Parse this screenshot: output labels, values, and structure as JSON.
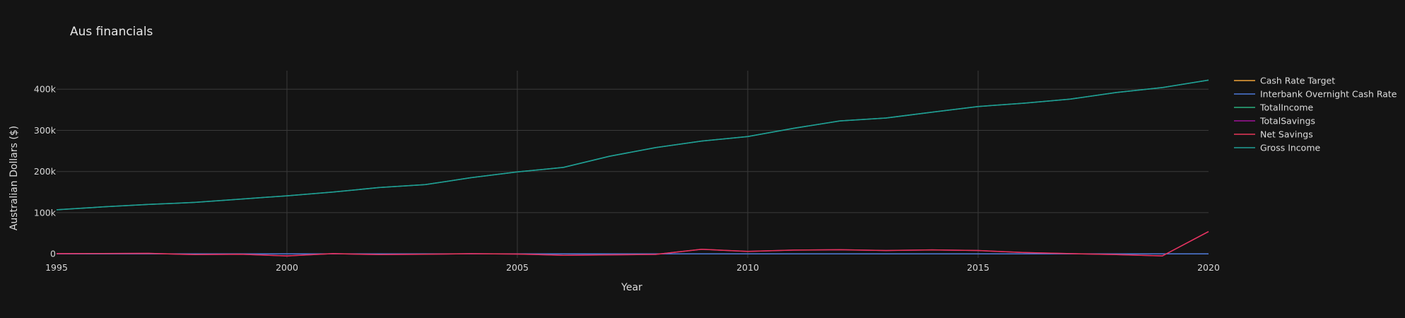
{
  "chart_data": {
    "type": "line",
    "title": "Aus financials",
    "xlabel": "Year",
    "ylabel": "Australian Dollars ($)",
    "xlim": [
      1995,
      2020
    ],
    "ylim": [
      -10000,
      445000
    ],
    "x_ticks": [
      1995,
      2000,
      2005,
      2010,
      2015,
      2020
    ],
    "x_tick_labels": [
      "1995",
      "2000",
      "2005",
      "2010",
      "2015",
      "2020"
    ],
    "y_ticks": [
      0,
      100000,
      200000,
      300000,
      400000
    ],
    "y_tick_labels": [
      "0",
      "100k",
      "200k",
      "300k",
      "400k"
    ],
    "grid": true,
    "legend_position": "top-right",
    "x": [
      1995,
      1996,
      1997,
      1998,
      1999,
      2000,
      2001,
      2002,
      2003,
      2004,
      2005,
      2006,
      2007,
      2008,
      2009,
      2010,
      2011,
      2012,
      2013,
      2014,
      2015,
      2016,
      2017,
      2018,
      2019,
      2020
    ],
    "series": [
      {
        "name": "Cash Rate Target",
        "color": "#f2a33a",
        "values": [
          7.5,
          7.5,
          5.5,
          5.0,
          4.75,
          6.0,
          4.5,
          4.75,
          5.0,
          5.25,
          5.5,
          5.75,
          6.5,
          4.25,
          3.75,
          4.5,
          4.25,
          3.0,
          2.5,
          2.5,
          2.0,
          1.5,
          1.5,
          1.5,
          0.75,
          0.1
        ]
      },
      {
        "name": "Interbank Overnight Cash Rate",
        "color": "#4c78d8",
        "values": [
          7.5,
          7.5,
          5.5,
          5.0,
          4.75,
          6.0,
          4.5,
          4.75,
          5.0,
          5.25,
          5.5,
          5.75,
          6.5,
          4.25,
          3.75,
          4.5,
          4.25,
          3.0,
          2.5,
          2.5,
          2.0,
          1.5,
          1.5,
          1.5,
          0.75,
          0.1
        ]
      },
      {
        "name": "TotalIncome",
        "color": "#2ab07f",
        "values": [
          107000,
          114000,
          120000,
          125000,
          133000,
          141000,
          150000,
          161000,
          168000,
          185000,
          199000,
          210000,
          237000,
          258000,
          274000,
          285000,
          305000,
          323000,
          330000,
          344000,
          358000,
          366000,
          376000,
          392000,
          404000,
          422000
        ]
      },
      {
        "name": "TotalSavings",
        "color": "#a0139a",
        "values": [
          500,
          800,
          1200,
          -2000,
          -1000,
          -5000,
          400,
          -2000,
          -1000,
          300,
          -500,
          -3500,
          -2500,
          -1500,
          11000,
          6000,
          9000,
          10000,
          8000,
          9500,
          8000,
          3000,
          500,
          -2000,
          -5000,
          54000
        ]
      },
      {
        "name": "Net Savings",
        "color": "#e8365a",
        "values": [
          500,
          800,
          1200,
          -2000,
          -1000,
          -5000,
          400,
          -2000,
          -1000,
          300,
          -500,
          -3500,
          -2500,
          -1500,
          11000,
          6000,
          9000,
          10000,
          8000,
          9500,
          8000,
          3000,
          500,
          -2000,
          -5000,
          54000
        ]
      },
      {
        "name": "Gross Income",
        "color": "#1f9e96",
        "values": [
          107000,
          114000,
          120000,
          125000,
          133000,
          141000,
          150000,
          161000,
          168000,
          185000,
          199000,
          210000,
          237000,
          258000,
          274000,
          285000,
          305000,
          323000,
          330000,
          344000,
          358000,
          366000,
          376000,
          392000,
          404000,
          422000
        ]
      }
    ]
  }
}
